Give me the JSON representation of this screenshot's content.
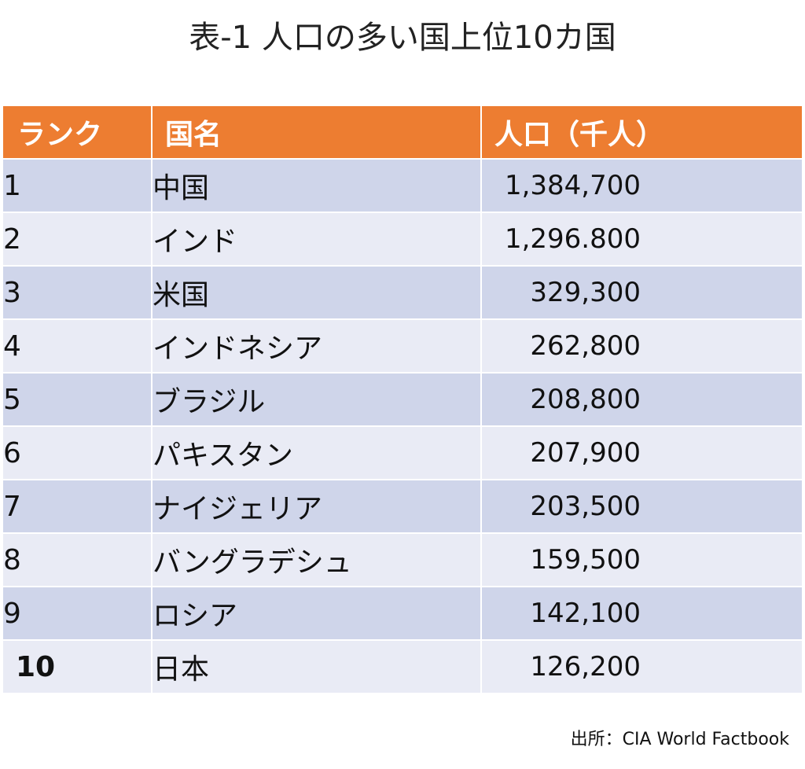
{
  "title": "表-1 人口の多い国上位10カ国",
  "table": {
    "headers": {
      "rank": "ランク",
      "country": "国名",
      "population": "人口（千人）"
    },
    "rows": [
      {
        "rank": "1",
        "country": "中国",
        "population": "1,384,700"
      },
      {
        "rank": "2",
        "country": "インド",
        "population": "1,296.800"
      },
      {
        "rank": "3",
        "country": "米国",
        "population": "329,300"
      },
      {
        "rank": "4",
        "country": "インドネシア",
        "population": "262,800"
      },
      {
        "rank": "5",
        "country": "ブラジル",
        "population": "208,800"
      },
      {
        "rank": "6",
        "country": "パキスタン",
        "population": "207,900"
      },
      {
        "rank": "7",
        "country": "ナイジェリア",
        "population": "203,500"
      },
      {
        "rank": "8",
        "country": "バングラデシュ",
        "population": "159,500"
      },
      {
        "rank": "9",
        "country": "ロシア",
        "population": "142,100"
      },
      {
        "rank": "10",
        "country": "日本",
        "population": "126,200"
      }
    ]
  },
  "source": "出所：CIA World Factbook",
  "colors": {
    "header_bg": "#ed7d31",
    "row_odd_bg": "#cfd5ea",
    "row_even_bg": "#e9ebf5"
  }
}
